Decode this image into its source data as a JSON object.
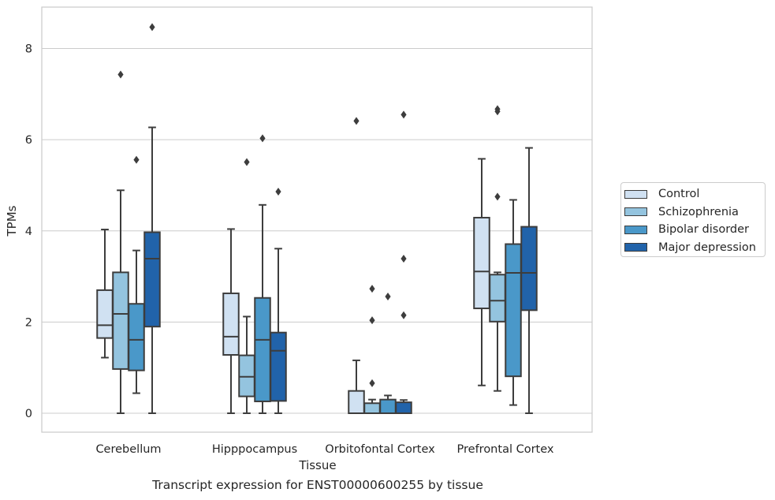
{
  "chart_data": {
    "type": "box",
    "xlabel": "Tissue",
    "ylabel": "TPMs",
    "ylim": [
      -0.4,
      8.9
    ],
    "yticks": [
      0,
      2,
      4,
      6,
      8
    ],
    "grid": true,
    "legend_position": "right",
    "categories": [
      "Cerebellum",
      "Hipppocampus",
      "Orbitofontal Cortex",
      "Prefrontal Cortex"
    ],
    "series": [
      {
        "name": "Control",
        "color": "#d0e1f2",
        "boxes": [
          {
            "whisker_low": 1.22,
            "q1": 1.65,
            "median": 1.93,
            "q3": 2.7,
            "whisker_high": 4.03,
            "outliers": []
          },
          {
            "whisker_low": 0.0,
            "q1": 1.28,
            "median": 1.68,
            "q3": 2.63,
            "whisker_high": 4.04,
            "outliers": []
          },
          {
            "whisker_low": 0.0,
            "q1": 0.0,
            "median": 0.0,
            "q3": 0.49,
            "whisker_high": 1.16,
            "outliers": [
              6.41
            ]
          },
          {
            "whisker_low": 0.61,
            "q1": 2.3,
            "median": 3.11,
            "q3": 4.29,
            "whisker_high": 5.58,
            "outliers": []
          }
        ]
      },
      {
        "name": "Schizophrenia",
        "color": "#94c4df",
        "boxes": [
          {
            "whisker_low": 0.0,
            "q1": 0.97,
            "median": 2.18,
            "q3": 3.09,
            "whisker_high": 4.89,
            "outliers": [
              7.43
            ]
          },
          {
            "whisker_low": 0.0,
            "q1": 0.37,
            "median": 0.8,
            "q3": 1.27,
            "whisker_high": 2.12,
            "outliers": [
              5.51
            ]
          },
          {
            "whisker_low": 0.0,
            "q1": 0.0,
            "median": 0.0,
            "q3": 0.22,
            "whisker_high": 0.3,
            "outliers": [
              0.66,
              2.04,
              2.73
            ]
          },
          {
            "whisker_low": 0.49,
            "q1": 2.01,
            "median": 2.47,
            "q3": 3.04,
            "whisker_high": 3.09,
            "outliers": [
              4.75,
              6.62,
              6.67
            ]
          }
        ]
      },
      {
        "name": "Bipolar disorder",
        "color": "#4a98c9",
        "boxes": [
          {
            "whisker_low": 0.44,
            "q1": 0.94,
            "median": 1.61,
            "q3": 2.4,
            "whisker_high": 3.57,
            "outliers": [
              5.56
            ]
          },
          {
            "whisker_low": 0.0,
            "q1": 0.26,
            "median": 1.61,
            "q3": 2.53,
            "whisker_high": 4.57,
            "outliers": [
              6.03
            ]
          },
          {
            "whisker_low": 0.0,
            "q1": 0.0,
            "median": 0.0,
            "q3": 0.3,
            "whisker_high": 0.39,
            "outliers": [
              2.56
            ]
          },
          {
            "whisker_low": 0.18,
            "q1": 0.81,
            "median": 3.08,
            "q3": 3.71,
            "whisker_high": 4.68,
            "outliers": []
          }
        ]
      },
      {
        "name": "Major depression",
        "color": "#2163aa",
        "boxes": [
          {
            "whisker_low": 0.0,
            "q1": 1.9,
            "median": 3.39,
            "q3": 3.97,
            "whisker_high": 6.27,
            "outliers": [
              8.47
            ]
          },
          {
            "whisker_low": 0.0,
            "q1": 0.27,
            "median": 1.37,
            "q3": 1.77,
            "whisker_high": 3.61,
            "outliers": [
              4.86
            ]
          },
          {
            "whisker_low": 0.0,
            "q1": 0.0,
            "median": 0.0,
            "q3": 0.24,
            "whisker_high": 0.29,
            "outliers": [
              2.15,
              3.39,
              6.55
            ]
          },
          {
            "whisker_low": 0.0,
            "q1": 2.26,
            "median": 3.08,
            "q3": 4.09,
            "whisker_high": 5.82,
            "outliers": []
          }
        ]
      }
    ]
  },
  "caption": "Transcript expression for ENST00000600255 by tissue"
}
